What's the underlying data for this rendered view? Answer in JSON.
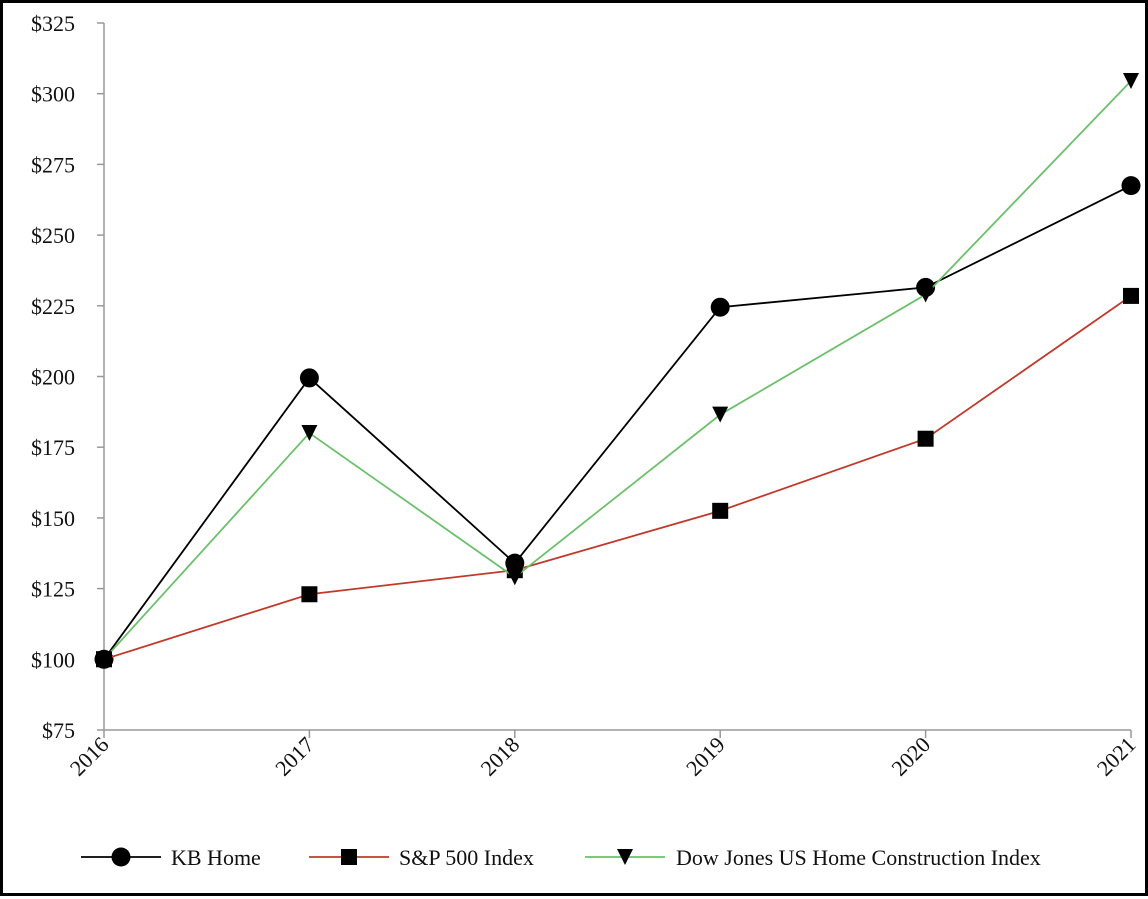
{
  "chart_data": {
    "type": "line",
    "title": "",
    "xlabel": "",
    "ylabel": "",
    "categories": [
      "2016",
      "2017",
      "2018",
      "2019",
      "2020",
      "2021"
    ],
    "ylim": [
      75,
      325
    ],
    "yticks": [
      75,
      100,
      125,
      150,
      175,
      200,
      225,
      250,
      275,
      300,
      325
    ],
    "ytick_labels": [
      "$75",
      "$100",
      "$125",
      "$150",
      "$175",
      "$200",
      "$225",
      "$250",
      "$275",
      "$300",
      "$325"
    ],
    "grid": false,
    "legend_position": "bottom",
    "series": [
      {
        "name": "KB Home",
        "values": [
          100,
          199.5,
          134,
          224.5,
          231.5,
          267.5
        ],
        "color": "#000000",
        "marker": "circle"
      },
      {
        "name": "S&P 500 Index",
        "values": [
          100,
          123,
          131.5,
          152.5,
          178,
          228.5
        ],
        "color": "#c0392b",
        "marker": "square"
      },
      {
        "name": "Dow Jones US Home Construction Index",
        "values": [
          100,
          180,
          129,
          186.5,
          229,
          304.5
        ],
        "color": "#6cc06c",
        "marker": "triangle-down"
      }
    ]
  }
}
